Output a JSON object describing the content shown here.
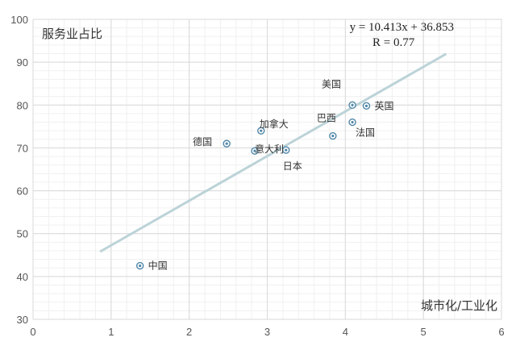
{
  "chart_data": {
    "type": "scatter",
    "title": "",
    "ylabel": "服务业占比",
    "xlabel": "城市化/工业化",
    "xlim": [
      0,
      6
    ],
    "ylim": [
      30,
      100
    ],
    "xticks": [
      0,
      1,
      2,
      3,
      4,
      5,
      6
    ],
    "yticks": [
      30,
      40,
      50,
      60,
      70,
      80,
      90,
      100
    ],
    "grid": true,
    "points": [
      {
        "label": "中国",
        "x": 1.37,
        "y": 42.5
      },
      {
        "label": "德国",
        "x": 2.48,
        "y": 71.0
      },
      {
        "label": "加拿大",
        "x": 2.92,
        "y": 74.0
      },
      {
        "label": "意大利",
        "x": 2.84,
        "y": 69.3
      },
      {
        "label": "日本",
        "x": 3.24,
        "y": 69.5
      },
      {
        "label": "巴西",
        "x": 3.84,
        "y": 72.8
      },
      {
        "label": "美国",
        "x": 4.09,
        "y": 80.0
      },
      {
        "label": "英国",
        "x": 4.27,
        "y": 79.8
      },
      {
        "label": "法国",
        "x": 4.09,
        "y": 76.0
      }
    ],
    "trendline": {
      "slope": 10.413,
      "intercept": 36.853,
      "x_range": [
        0.87,
        5.28
      ],
      "equation_text": "y = 10.413x + 36.853",
      "r_text": "R  = 0.77",
      "color": "#bcd3d8"
    },
    "marker_color": "#4f86a8"
  }
}
